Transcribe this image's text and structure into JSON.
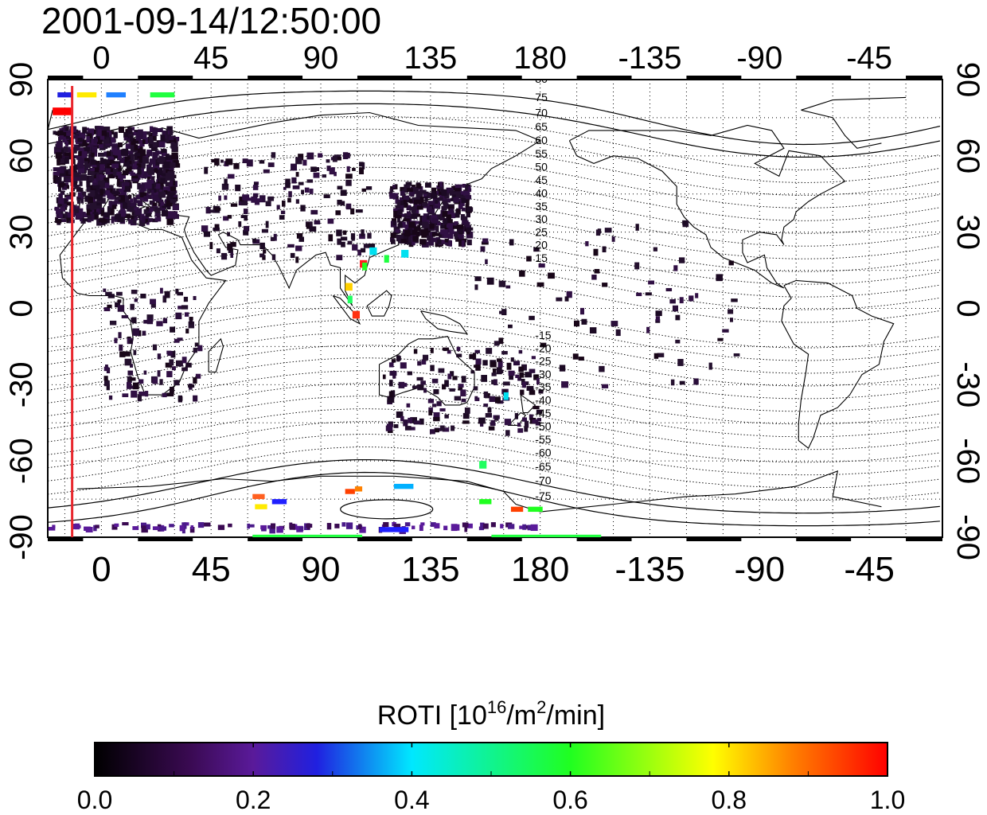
{
  "timestamp": "2001-09-14/12:50:00",
  "map": {
    "projection": "cylindrical",
    "lon_ticks_labels": [
      "0",
      "45",
      "90",
      "135",
      "180",
      "-135",
      "-90",
      "-45"
    ],
    "lon_tick_values": [
      0,
      45,
      90,
      135,
      180,
      225,
      270,
      315
    ],
    "lon_range": [
      -22,
      345
    ],
    "lat_tick_labels": [
      "90",
      "60",
      "30",
      "0",
      "-30",
      "-60",
      "-90"
    ],
    "lat_tick_values": [
      90,
      60,
      30,
      0,
      -30,
      -60,
      -90
    ],
    "lat_range": [
      -90,
      90
    ],
    "grid": "dotted",
    "magnetic_contour_labels": [
      "80",
      "75",
      "70",
      "65",
      "60",
      "55",
      "50",
      "45",
      "40",
      "35",
      "30",
      "25",
      "20",
      "15",
      "-15",
      "-20",
      "-25",
      "-30",
      "-35",
      "-40",
      "-45",
      "-50",
      "-55",
      "-60",
      "-65",
      "-70",
      "-75"
    ],
    "terminator_longitude": -12,
    "terminator_color": "#e8262d"
  },
  "colorbar": {
    "title_prefix": "ROTI  [10",
    "title_exp1": "16",
    "title_mid": "/m",
    "title_exp2": "2",
    "title_suffix": "/min]",
    "min": 0.0,
    "max": 1.0,
    "tick_labels": [
      "0.0",
      "0.2",
      "0.4",
      "0.6",
      "0.8",
      "1.0"
    ],
    "tick_values": [
      0.0,
      0.2,
      0.4,
      0.6,
      0.8,
      1.0
    ],
    "colormap": [
      "#000000",
      "#3a0a52",
      "#5a1a9a",
      "#1010ff",
      "#00e0f0",
      "#20ff20",
      "#ffff00",
      "#ff8000",
      "#ff0000"
    ]
  }
}
